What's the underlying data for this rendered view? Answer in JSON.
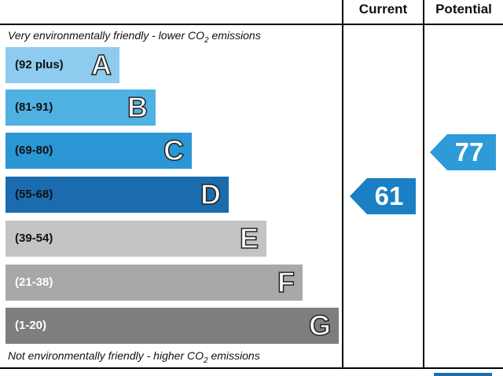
{
  "headers": {
    "current": "Current",
    "potential": "Potential"
  },
  "notes": {
    "top_prefix": "Very environmentally friendly - lower C",
    "top_mid": "O",
    "top_sub": "2",
    "top_suffix": " emissions",
    "bottom_prefix": "Not environmentally friendly - higher C",
    "bottom_mid": "O",
    "bottom_sub": "2",
    "bottom_suffix": " emissions"
  },
  "chart_data": {
    "type": "bar",
    "categories": [
      "A",
      "B",
      "C",
      "D",
      "E",
      "F",
      "G"
    ],
    "ranges": [
      "(92 plus)",
      "(81-91)",
      "(69-80)",
      "(55-68)",
      "(39-54)",
      "(21-38)",
      "(1-20)"
    ],
    "colors": [
      "#8ecbee",
      "#4fb0e2",
      "#2a96d4",
      "#1a6cae",
      "#c4c4c4",
      "#a8a8a8",
      "#7e7e7e"
    ],
    "range_text_colors": [
      "#111111",
      "#111111",
      "#111111",
      "#111111",
      "#111111",
      "#ffffff",
      "#ffffff"
    ],
    "current": {
      "value": 61,
      "band": "D",
      "color": "#1a7fc4"
    },
    "potential": {
      "value": 77,
      "band": "C",
      "color": "#2f9ad8"
    }
  }
}
